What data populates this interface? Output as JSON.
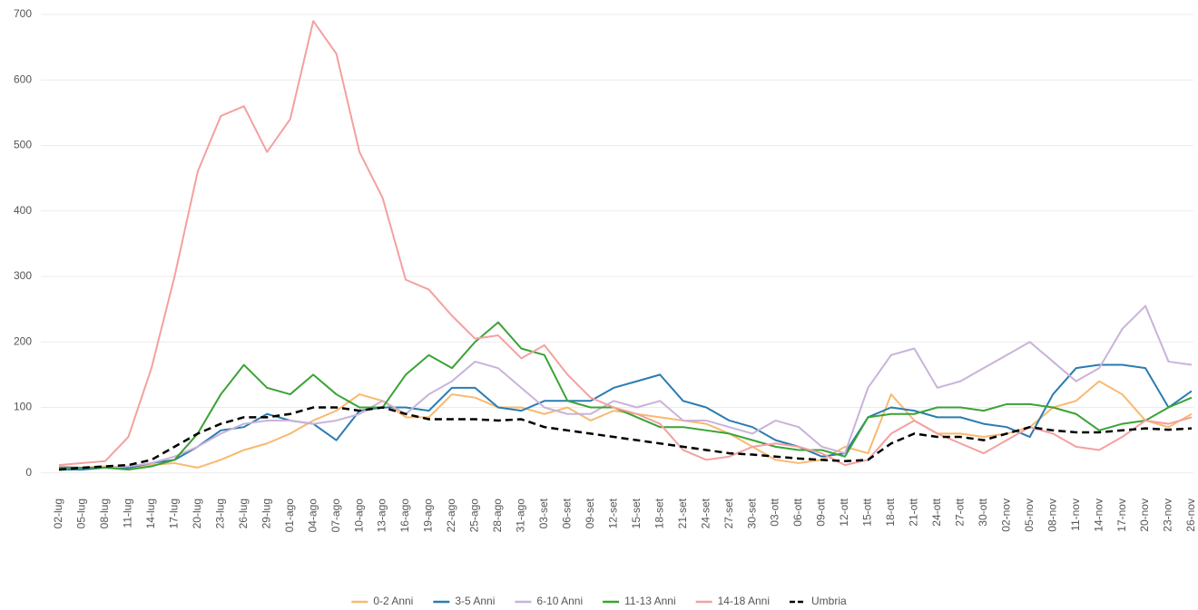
{
  "chart_data": {
    "type": "line",
    "categories": [
      "02-lug",
      "05-lug",
      "08-lug",
      "11-lug",
      "14-lug",
      "17-lug",
      "20-lug",
      "23-lug",
      "26-lug",
      "29-lug",
      "01-ago",
      "04-ago",
      "07-ago",
      "10-ago",
      "13-ago",
      "16-ago",
      "19-ago",
      "22-ago",
      "25-ago",
      "28-ago",
      "31-ago",
      "03-set",
      "06-set",
      "09-set",
      "12-set",
      "15-set",
      "18-set",
      "21-set",
      "24-set",
      "27-set",
      "30-set",
      "03-ott",
      "06-ott",
      "09-ott",
      "12-ott",
      "15-ott",
      "18-ott",
      "21-ott",
      "24-ott",
      "27-ott",
      "30-ott",
      "02-nov",
      "05-nov",
      "08-nov",
      "11-nov",
      "14-nov",
      "17-nov",
      "20-nov",
      "23-nov",
      "26-nov"
    ],
    "series": [
      {
        "name": "0-2 Anni",
        "color": "#f9b96e",
        "values": [
          10,
          8,
          10,
          8,
          12,
          15,
          8,
          20,
          35,
          45,
          60,
          80,
          95,
          120,
          110,
          85,
          85,
          120,
          115,
          100,
          100,
          90,
          100,
          80,
          95,
          90,
          85,
          80,
          75,
          60,
          40,
          20,
          15,
          20,
          40,
          30,
          120,
          80,
          60,
          60,
          55,
          60,
          70,
          100,
          110,
          140,
          120,
          80,
          70,
          90
        ]
      },
      {
        "name": "3-5 Anni",
        "color": "#2a7cb0",
        "values": [
          5,
          5,
          8,
          8,
          15,
          20,
          40,
          65,
          70,
          90,
          80,
          75,
          50,
          95,
          100,
          100,
          95,
          130,
          130,
          100,
          95,
          110,
          110,
          110,
          130,
          140,
          150,
          110,
          100,
          80,
          70,
          50,
          40,
          25,
          30,
          85,
          100,
          95,
          85,
          85,
          75,
          70,
          55,
          120,
          160,
          165,
          165,
          160,
          100,
          125
        ]
      },
      {
        "name": "6-10 Anni",
        "color": "#c9b3d9",
        "values": [
          10,
          8,
          8,
          10,
          15,
          25,
          40,
          60,
          75,
          80,
          80,
          75,
          80,
          90,
          110,
          90,
          120,
          140,
          170,
          160,
          130,
          100,
          90,
          90,
          110,
          100,
          110,
          80,
          80,
          70,
          60,
          80,
          70,
          40,
          30,
          130,
          180,
          190,
          130,
          140,
          160,
          180,
          200,
          170,
          140,
          160,
          220,
          255,
          170,
          165
        ]
      },
      {
        "name": "11-13 Anni",
        "color": "#3aa335",
        "values": [
          8,
          8,
          8,
          5,
          10,
          20,
          60,
          120,
          165,
          130,
          120,
          150,
          120,
          100,
          100,
          150,
          180,
          160,
          200,
          230,
          190,
          180,
          110,
          100,
          100,
          85,
          70,
          70,
          65,
          60,
          50,
          40,
          35,
          35,
          25,
          85,
          90,
          90,
          100,
          100,
          95,
          105,
          105,
          100,
          90,
          65,
          75,
          80,
          100,
          115
        ]
      },
      {
        "name": "14-18 Anni",
        "color": "#f4a0a0",
        "values": [
          12,
          15,
          18,
          55,
          160,
          300,
          460,
          545,
          560,
          490,
          540,
          690,
          640,
          490,
          420,
          295,
          280,
          240,
          205,
          210,
          175,
          195,
          150,
          115,
          100,
          90,
          75,
          35,
          20,
          25,
          40,
          45,
          40,
          30,
          12,
          20,
          60,
          80,
          60,
          45,
          30,
          50,
          70,
          60,
          40,
          35,
          55,
          80,
          75,
          85
        ]
      },
      {
        "name": "Umbria",
        "color": "#000000",
        "dashed": true,
        "values": [
          5,
          8,
          10,
          12,
          20,
          40,
          60,
          75,
          85,
          85,
          90,
          100,
          100,
          95,
          100,
          90,
          82,
          82,
          82,
          80,
          82,
          70,
          65,
          60,
          55,
          50,
          45,
          40,
          35,
          30,
          28,
          25,
          22,
          20,
          18,
          20,
          45,
          60,
          55,
          55,
          50,
          60,
          70,
          65,
          62,
          62,
          65,
          68,
          66,
          68
        ]
      }
    ],
    "ylim": [
      -28,
      700
    ],
    "yticks": [
      0,
      100,
      200,
      300,
      400,
      500,
      600,
      700
    ],
    "grid": true,
    "legend": "bottom"
  }
}
